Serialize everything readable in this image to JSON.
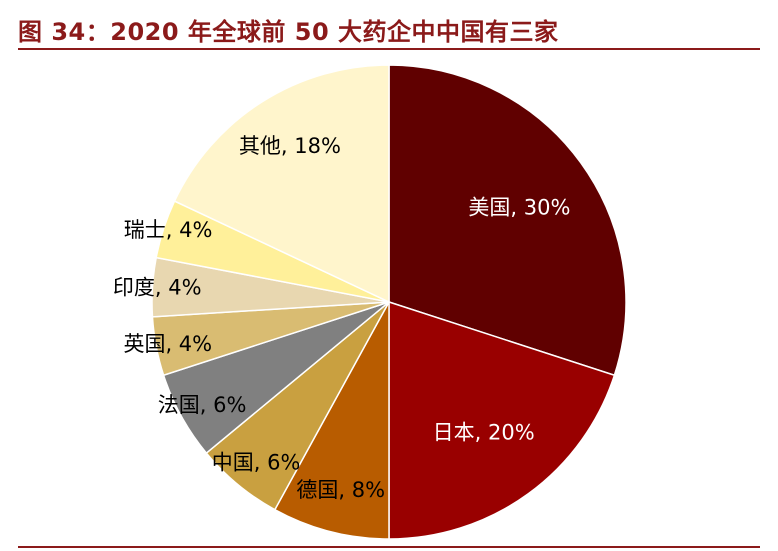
{
  "figure": {
    "title": "图 34：2020 年全球前 50 大药企中中国有三家"
  },
  "chart_data": {
    "type": "pie",
    "start": "12 o'clock",
    "direction": "clockwise",
    "slices": [
      {
        "name": "美国",
        "value": 30,
        "label": "美国, 30%",
        "color": "#600000",
        "text_color": "#ffffff"
      },
      {
        "name": "日本",
        "value": 20,
        "label": "日本, 20%",
        "color": "#990000",
        "text_color": "#ffffff"
      },
      {
        "name": "德国",
        "value": 8,
        "label": "德国, 8%",
        "color": "#b85c00",
        "text_color": "#000000"
      },
      {
        "name": "中国",
        "value": 6,
        "label": "中国, 6%",
        "color": "#c9a040",
        "text_color": "#000000"
      },
      {
        "name": "法国",
        "value": 6,
        "label": "法国, 6%",
        "color": "#808080",
        "text_color": "#000000"
      },
      {
        "name": "英国",
        "value": 4,
        "label": "英国, 4%",
        "color": "#d9bc72",
        "text_color": "#000000"
      },
      {
        "name": "印度",
        "value": 4,
        "label": "印度, 4%",
        "color": "#e8d7b0",
        "text_color": "#000000"
      },
      {
        "name": "瑞士",
        "value": 4,
        "label": "瑞士, 4%",
        "color": "#fff09a",
        "text_color": "#000000"
      },
      {
        "name": "其他",
        "value": 18,
        "label": "其他, 18%",
        "color": "#fff5cc",
        "text_color": "#000000"
      }
    ]
  }
}
